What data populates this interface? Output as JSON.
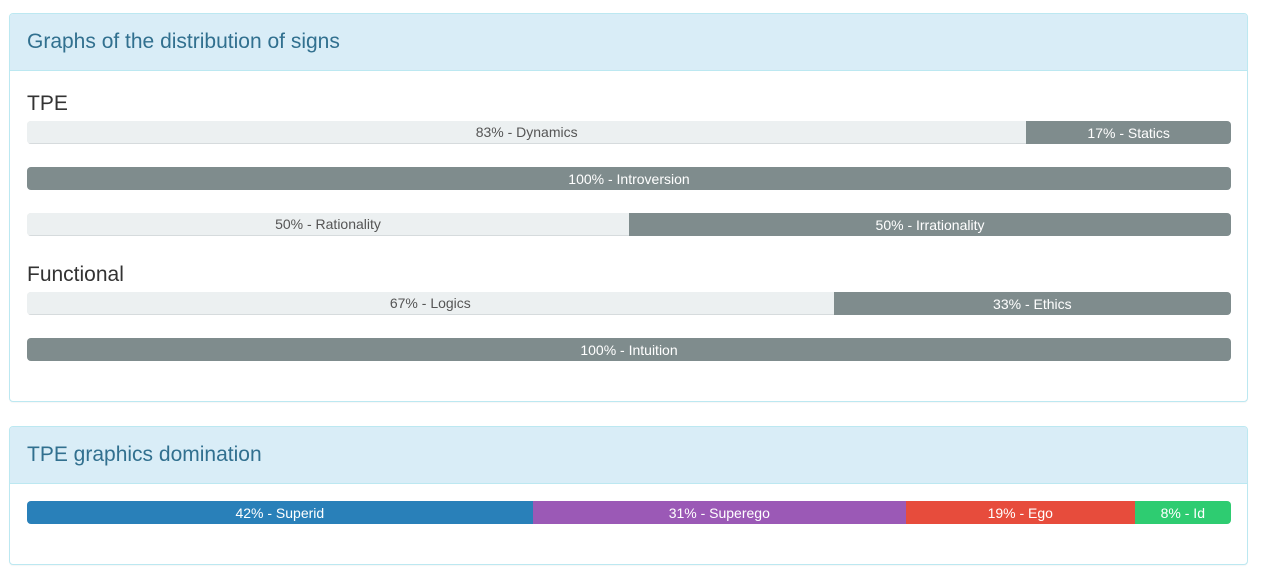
{
  "distribution_panel": {
    "title": "Graphs of the distribution of signs",
    "tpe_heading": "TPE",
    "functional_heading": "Functional",
    "tpe_bars": [
      {
        "left": {
          "label": "83% - Dynamics",
          "percent": 83
        },
        "right": {
          "label": "17% - Statics",
          "percent": 17
        }
      },
      {
        "left": {
          "label": "",
          "percent": 0
        },
        "right": {
          "label": "100% - Introversion",
          "percent": 100
        }
      },
      {
        "left": {
          "label": "50% - Rationality",
          "percent": 50
        },
        "right": {
          "label": "50% - Irrationality",
          "percent": 50
        }
      }
    ],
    "functional_bars": [
      {
        "left": {
          "label": "67% - Logics",
          "percent": 67
        },
        "right": {
          "label": "33% - Ethics",
          "percent": 33
        }
      },
      {
        "left": {
          "label": "",
          "percent": 0
        },
        "right": {
          "label": "100% - Intuition",
          "percent": 100
        }
      }
    ]
  },
  "domination_panel": {
    "title": "TPE graphics domination",
    "segments": [
      {
        "label": "42% - Superid",
        "percent": 42,
        "color": "#2980b9"
      },
      {
        "label": "31% - Superego",
        "percent": 31,
        "color": "#9b59b6"
      },
      {
        "label": "19% - Ego",
        "percent": 19,
        "color": "#e74c3c"
      },
      {
        "label": "8% - Id",
        "percent": 8,
        "color": "#2ecc71"
      }
    ]
  },
  "colors": {
    "heading_bg": "#d9edf7",
    "heading_text": "#31708f",
    "bar_light": "#ecf0f1",
    "bar_dark": "#7f8c8d"
  }
}
